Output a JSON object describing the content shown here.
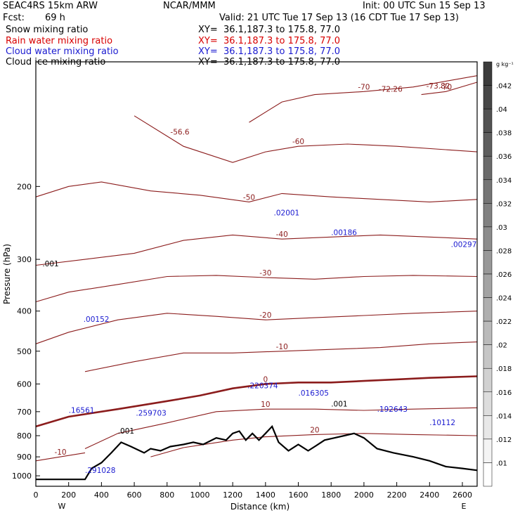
{
  "header": {
    "model": "SEAC4RS 15km ARW",
    "org": "NCAR/MMM",
    "init": "Init: 00 UTC Sun 15 Sep 13",
    "fcst_label": "Fcst:",
    "fcst_value": "69 h",
    "valid": "Valid: 21 UTC Tue 17 Sep 13 (16 CDT Tue 17 Sep 13)"
  },
  "fields": [
    {
      "name": "Snow mixing ratio",
      "xy": "XY=  36.1,187.3 to 175.8, 77.0",
      "color": "#000000"
    },
    {
      "name": "Rain water mixing ratio",
      "xy": "XY=  36.1,187.3 to 175.8, 77.0",
      "color": "#d80000"
    },
    {
      "name": "Cloud water mixing ratio",
      "xy": "XY=  36.1,187.3 to 175.8, 77.0",
      "color": "#1a1ad0"
    },
    {
      "name": "Cloud ice mixing ratio",
      "xy": "XY=  36.1,187.3 to 175.8, 77.0",
      "color": "#000000"
    }
  ],
  "colorbar": {
    "unit": "g kg⁻¹",
    "labels": [
      ".042",
      ".04",
      ".038",
      ".036",
      ".034",
      ".032",
      ".03",
      ".028",
      ".026",
      ".024",
      ".022",
      ".02",
      ".018",
      ".016",
      ".014",
      ".012",
      ".01"
    ]
  },
  "chart_data": {
    "type": "contour",
    "xlabel": "Distance (km)",
    "ylabel": "Pressure (hPa)",
    "xlim": [
      0,
      2690
    ],
    "ylim": [
      1060,
      100
    ],
    "y_scale": "log",
    "x_ticks": [
      0,
      200,
      400,
      600,
      800,
      1000,
      1200,
      1400,
      1600,
      1800,
      2000,
      2200,
      2400,
      2600
    ],
    "y_ticks": [
      200,
      300,
      400,
      500,
      600,
      700,
      800,
      900,
      1000
    ],
    "x_ends": [
      "W",
      "E"
    ],
    "temperature_contours": [
      {
        "label": "-70",
        "points": [
          [
            1300,
            140
          ],
          [
            1500,
            125
          ],
          [
            1700,
            120
          ],
          [
            2000,
            118
          ],
          [
            2300,
            115
          ],
          [
            2690,
            108
          ]
        ]
      },
      {
        "label": "-70",
        "points": [
          [
            2350,
            120
          ],
          [
            2500,
            118
          ],
          [
            2690,
            112
          ]
        ]
      },
      {
        "label": "-60",
        "points": [
          [
            600,
            135
          ],
          [
            900,
            160
          ],
          [
            1200,
            175
          ],
          [
            1400,
            165
          ],
          [
            1600,
            160
          ],
          [
            1900,
            158
          ],
          [
            2200,
            160
          ],
          [
            2690,
            165
          ]
        ]
      },
      {
        "label": "-50",
        "points": [
          [
            0,
            212
          ],
          [
            200,
            200
          ],
          [
            400,
            195
          ],
          [
            700,
            205
          ],
          [
            1000,
            210
          ],
          [
            1300,
            218
          ],
          [
            1500,
            208
          ],
          [
            1800,
            212
          ],
          [
            2100,
            215
          ],
          [
            2400,
            218
          ],
          [
            2690,
            215
          ]
        ]
      },
      {
        "label": "-40",
        "points": [
          [
            0,
            310
          ],
          [
            300,
            300
          ],
          [
            600,
            290
          ],
          [
            900,
            270
          ],
          [
            1200,
            262
          ],
          [
            1500,
            268
          ],
          [
            1800,
            265
          ],
          [
            2100,
            262
          ],
          [
            2400,
            265
          ],
          [
            2690,
            268
          ]
        ]
      },
      {
        "label": "-30",
        "points": [
          [
            0,
            380
          ],
          [
            200,
            360
          ],
          [
            500,
            345
          ],
          [
            800,
            330
          ],
          [
            1100,
            328
          ],
          [
            1400,
            332
          ],
          [
            1700,
            335
          ],
          [
            2000,
            330
          ],
          [
            2300,
            328
          ],
          [
            2690,
            330
          ]
        ]
      },
      {
        "label": "-20",
        "points": [
          [
            0,
            480
          ],
          [
            200,
            450
          ],
          [
            500,
            420
          ],
          [
            800,
            405
          ],
          [
            1100,
            412
          ],
          [
            1400,
            420
          ],
          [
            1700,
            415
          ],
          [
            2000,
            410
          ],
          [
            2300,
            405
          ],
          [
            2690,
            400
          ]
        ]
      },
      {
        "label": "-10",
        "points": [
          [
            300,
            560
          ],
          [
            600,
            530
          ],
          [
            900,
            505
          ],
          [
            1200,
            505
          ],
          [
            1500,
            500
          ],
          [
            1800,
            495
          ],
          [
            2100,
            490
          ],
          [
            2400,
            480
          ],
          [
            2690,
            475
          ]
        ]
      },
      {
        "label": "0",
        "points": [
          [
            0,
            760
          ],
          [
            200,
            720
          ],
          [
            500,
            690
          ],
          [
            800,
            660
          ],
          [
            1000,
            640
          ],
          [
            1200,
            615
          ],
          [
            1400,
            600
          ],
          [
            1600,
            595
          ],
          [
            1800,
            595
          ],
          [
            2000,
            590
          ],
          [
            2200,
            585
          ],
          [
            2400,
            580
          ],
          [
            2690,
            575
          ]
        ]
      },
      {
        "label": "10",
        "points": [
          [
            300,
            860
          ],
          [
            500,
            790
          ],
          [
            800,
            745
          ],
          [
            1100,
            700
          ],
          [
            1400,
            690
          ],
          [
            1700,
            690
          ],
          [
            2000,
            695
          ],
          [
            2300,
            690
          ],
          [
            2690,
            685
          ]
        ]
      },
      {
        "label": "20",
        "points": [
          [
            700,
            900
          ],
          [
            900,
            855
          ],
          [
            1200,
            820
          ],
          [
            1400,
            805
          ],
          [
            1700,
            795
          ],
          [
            2000,
            790
          ],
          [
            2300,
            795
          ],
          [
            2690,
            800
          ]
        ]
      },
      {
        "label": "-10",
        "points": [
          [
            0,
            920
          ],
          [
            150,
            900
          ],
          [
            300,
            880
          ]
        ]
      }
    ],
    "maxima": [
      {
        "label": "-56.6",
        "x": 820,
        "p": 150
      },
      {
        "label": "-72.26",
        "x": 2090,
        "p": 118
      },
      {
        "label": "-73.82",
        "x": 2380,
        "p": 116
      },
      {
        "label": ".02001",
        "x": 1450,
        "p": 235
      },
      {
        "label": ".00186",
        "x": 1800,
        "p": 262
      },
      {
        "label": ".00297",
        "x": 2530,
        "p": 280
      },
      {
        "label": ".00152",
        "x": 290,
        "p": 425
      },
      {
        "label": ".001",
        "x": 40,
        "p": 312
      },
      {
        "label": ".220374",
        "x": 1290,
        "p": 615
      },
      {
        "label": ".016305",
        "x": 1600,
        "p": 640
      },
      {
        "label": ".001",
        "x": 1800,
        "p": 680
      },
      {
        "label": ".192643",
        "x": 2080,
        "p": 700
      },
      {
        "label": ".10112",
        "x": 2400,
        "p": 755
      },
      {
        "label": ".16561",
        "x": 200,
        "p": 705
      },
      {
        "label": ".259703",
        "x": 610,
        "p": 715
      },
      {
        "label": ".001",
        "x": 500,
        "p": 790
      },
      {
        "label": ".291028",
        "x": 300,
        "p": 985
      }
    ],
    "terrain": [
      [
        0,
        1020
      ],
      [
        300,
        1020
      ],
      [
        340,
        960
      ],
      [
        400,
        930
      ],
      [
        460,
        880
      ],
      [
        520,
        830
      ],
      [
        580,
        850
      ],
      [
        660,
        880
      ],
      [
        700,
        860
      ],
      [
        760,
        870
      ],
      [
        820,
        850
      ],
      [
        900,
        840
      ],
      [
        960,
        830
      ],
      [
        1020,
        840
      ],
      [
        1100,
        810
      ],
      [
        1160,
        820
      ],
      [
        1200,
        790
      ],
      [
        1240,
        780
      ],
      [
        1280,
        820
      ],
      [
        1320,
        790
      ],
      [
        1360,
        820
      ],
      [
        1400,
        790
      ],
      [
        1440,
        760
      ],
      [
        1480,
        830
      ],
      [
        1540,
        870
      ],
      [
        1600,
        840
      ],
      [
        1660,
        870
      ],
      [
        1700,
        850
      ],
      [
        1760,
        820
      ],
      [
        1820,
        810
      ],
      [
        1880,
        800
      ],
      [
        1940,
        790
      ],
      [
        2000,
        810
      ],
      [
        2080,
        860
      ],
      [
        2180,
        880
      ],
      [
        2300,
        900
      ],
      [
        2400,
        920
      ],
      [
        2500,
        950
      ],
      [
        2600,
        960
      ],
      [
        2690,
        970
      ]
    ]
  }
}
